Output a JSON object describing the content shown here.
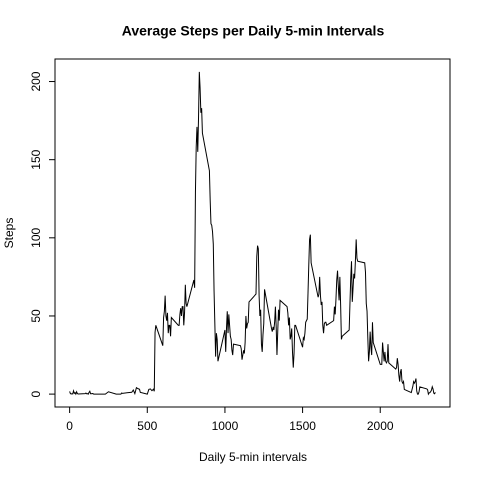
{
  "chart_data": {
    "type": "line",
    "title": "Average Steps per Daily 5-min Intervals",
    "x_label": "Daily 5-min intervals",
    "y_label": "Steps",
    "color": "#000000",
    "xlim": [
      -94.2,
      2449.2
    ],
    "ylim": [
      -8.25,
      214.42
    ],
    "xticks": [
      0,
      500,
      1000,
      1500,
      2000
    ],
    "yticks": [
      0,
      50,
      100,
      150,
      200
    ],
    "x": [
      0,
      5,
      10,
      15,
      20,
      25,
      30,
      35,
      40,
      45,
      50,
      55,
      100,
      105,
      110,
      115,
      120,
      125,
      130,
      135,
      140,
      145,
      150,
      155,
      200,
      230,
      250,
      300,
      330,
      335,
      340,
      400,
      410,
      420,
      430,
      440,
      450,
      455,
      500,
      510,
      520,
      530,
      540,
      545,
      550,
      555,
      600,
      605,
      610,
      615,
      620,
      625,
      630,
      635,
      640,
      645,
      650,
      655,
      700,
      705,
      710,
      715,
      720,
      725,
      730,
      735,
      740,
      745,
      750,
      755,
      800,
      805,
      810,
      815,
      820,
      825,
      830,
      835,
      840,
      845,
      850,
      855,
      900,
      905,
      910,
      915,
      920,
      925,
      930,
      935,
      940,
      945,
      950,
      955,
      1000,
      1005,
      1010,
      1015,
      1020,
      1025,
      1030,
      1035,
      1040,
      1045,
      1050,
      1055,
      1100,
      1105,
      1110,
      1115,
      1120,
      1125,
      1130,
      1135,
      1140,
      1145,
      1150,
      1155,
      1200,
      1205,
      1210,
      1215,
      1220,
      1225,
      1230,
      1235,
      1240,
      1245,
      1250,
      1255,
      1300,
      1305,
      1310,
      1315,
      1320,
      1325,
      1330,
      1335,
      1340,
      1345,
      1350,
      1355,
      1400,
      1405,
      1410,
      1415,
      1420,
      1425,
      1430,
      1435,
      1440,
      1445,
      1450,
      1455,
      1500,
      1505,
      1510,
      1515,
      1520,
      1525,
      1530,
      1535,
      1540,
      1545,
      1550,
      1555,
      1600,
      1605,
      1610,
      1615,
      1620,
      1625,
      1630,
      1635,
      1640,
      1645,
      1650,
      1655,
      1700,
      1705,
      1710,
      1715,
      1720,
      1725,
      1730,
      1735,
      1740,
      1745,
      1750,
      1755,
      1800,
      1805,
      1810,
      1815,
      1820,
      1825,
      1830,
      1835,
      1840,
      1845,
      1850,
      1855,
      1900,
      1905,
      1910,
      1915,
      1920,
      1925,
      1930,
      1935,
      1940,
      1945,
      1950,
      1955,
      2000,
      2005,
      2010,
      2015,
      2020,
      2025,
      2030,
      2035,
      2040,
      2045,
      2050,
      2055,
      2100,
      2105,
      2110,
      2115,
      2120,
      2125,
      2130,
      2135,
      2140,
      2145,
      2150,
      2155,
      2200,
      2205,
      2210,
      2215,
      2220,
      2225,
      2230,
      2235,
      2240,
      2245,
      2250,
      2255,
      2300,
      2305,
      2310,
      2315,
      2320,
      2325,
      2330,
      2335,
      2340,
      2345,
      2350,
      2355
    ],
    "values": [
      1.7,
      0.3,
      0.1,
      0.2,
      0.1,
      2.1,
      0.5,
      0.9,
      0,
      1.5,
      0.3,
      0.1,
      0.3,
      0.7,
      0.2,
      0.3,
      0,
      1.1,
      1.8,
      0.2,
      0.2,
      0.4,
      0.3,
      0,
      0,
      0,
      1.5,
      0,
      0,
      0.7,
      0.5,
      1.2,
      2.6,
      0.3,
      4.1,
      3.5,
      3.1,
      1.1,
      0,
      3,
      3.3,
      2.2,
      3.2,
      1.8,
      39.5,
      44,
      31,
      49,
      53,
      63,
      50,
      47,
      52,
      39,
      44,
      44,
      37,
      49,
      44,
      44,
      51,
      55,
      50,
      56,
      56,
      44,
      52,
      70,
      58,
      56,
      73,
      68,
      129,
      158,
      171,
      155,
      177,
      206.17,
      196,
      180,
      183,
      167,
      143,
      124,
      109,
      108,
      104,
      96,
      66,
      45,
      24,
      39,
      35,
      21,
      41,
      27,
      42,
      53,
      39,
      51,
      44,
      37,
      35,
      28,
      25,
      32,
      31,
      29,
      22,
      25,
      28,
      26,
      33,
      50,
      42,
      45,
      46,
      59,
      64,
      88,
      95,
      93,
      63,
      50,
      54,
      32,
      27,
      38,
      45,
      67,
      42,
      40,
      43,
      41,
      46,
      56,
      43,
      25,
      40,
      54,
      47,
      60,
      56,
      52,
      44,
      49,
      35,
      37,
      42,
      27,
      17,
      26,
      44,
      44,
      30,
      36,
      35,
      39,
      46,
      47,
      48,
      65,
      83,
      99,
      102,
      84,
      62,
      64,
      75,
      63,
      57,
      59,
      44,
      39,
      45,
      46,
      46,
      44,
      47,
      56,
      51,
      61,
      73,
      79,
      69,
      60,
      75,
      57,
      35,
      37,
      41,
      58,
      74,
      85,
      59,
      68,
      77,
      74,
      85,
      99,
      87,
      85,
      84,
      78,
      58,
      53,
      36,
      21,
      27,
      40,
      30,
      25,
      46,
      33,
      19,
      19,
      19,
      33,
      27,
      21,
      27,
      21,
      20,
      21,
      32,
      20,
      16,
      17,
      23,
      19,
      12,
      8,
      14,
      16,
      8,
      7,
      8,
      3,
      1,
      3,
      5,
      8,
      7,
      8,
      10,
      2,
      0,
      0,
      1.6,
      4.6,
      3.3,
      2.8,
      0,
      0.8,
      1,
      1.6,
      2.6,
      4.7,
      3.3,
      0.6,
      0.2,
      1.1
    ]
  }
}
